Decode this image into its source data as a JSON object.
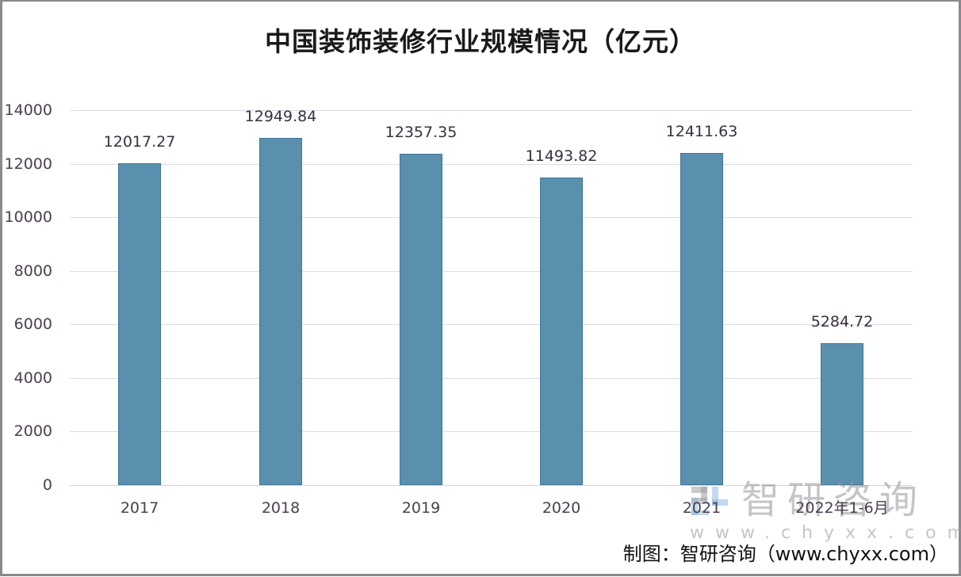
{
  "chart_data": {
    "type": "bar",
    "title": "中国装饰装修行业规模情况（亿元）",
    "categories": [
      "2017",
      "2018",
      "2019",
      "2020",
      "2021",
      "2022年1-6月"
    ],
    "values": [
      12017.27,
      12949.84,
      12357.35,
      11493.82,
      12411.63,
      5284.72
    ],
    "value_labels": [
      "12017.27",
      "12949.84",
      "12357.35",
      "11493.82",
      "12411.63",
      "5284.72"
    ],
    "xlabel": "",
    "ylabel": "",
    "ylim": [
      0,
      14000
    ],
    "yticks": [
      "0",
      "2000",
      "4000",
      "6000",
      "8000",
      "10000",
      "12000",
      "14000"
    ],
    "grid": true,
    "legend": null,
    "bar_color": "#5b8fae"
  },
  "watermark": {
    "brand_cn": "智研咨询",
    "url": "www.chyxx.com"
  },
  "source": "制图：智研咨询（www.chyxx.com）"
}
